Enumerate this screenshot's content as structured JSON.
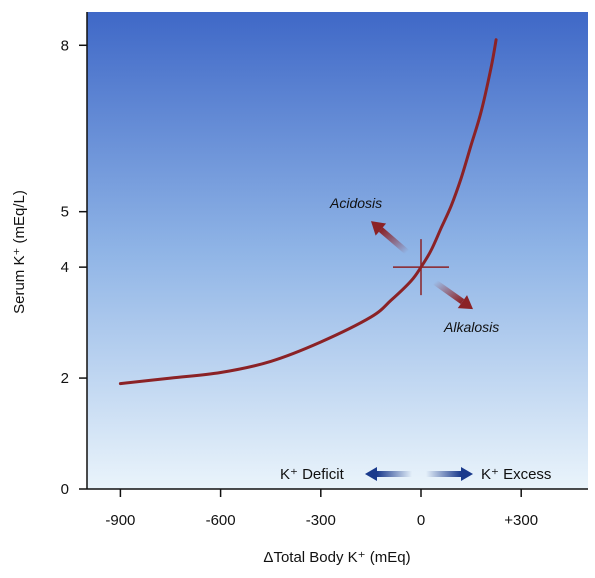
{
  "chart_data": {
    "type": "line",
    "xlabel": "ΔTotal Body K⁺ (mEq)",
    "ylabel": "Serum K⁺ (mEq/L)",
    "xlim": [
      -1000,
      500
    ],
    "ylim": [
      0,
      8.6
    ],
    "x_ticks": [
      {
        "value": -900,
        "label": "-900"
      },
      {
        "value": -600,
        "label": "-600"
      },
      {
        "value": -300,
        "label": "-300"
      },
      {
        "value": 0,
        "label": "0"
      },
      {
        "value": 300,
        "label": "+300"
      }
    ],
    "y_ticks": [
      {
        "value": 0,
        "label": "0"
      },
      {
        "value": 2,
        "label": "2"
      },
      {
        "value": 4,
        "label": "4"
      },
      {
        "value": 5,
        "label": "5"
      },
      {
        "value": 8,
        "label": "8"
      }
    ],
    "series": [
      {
        "x": [
          -900,
          -750,
          -600,
          -450,
          -300,
          -150,
          -90,
          -30,
          0,
          30,
          60,
          90,
          120,
          150,
          180,
          210,
          225
        ],
        "y": [
          1.9,
          2.0,
          2.1,
          2.3,
          2.65,
          3.1,
          3.4,
          3.75,
          4.0,
          4.3,
          4.7,
          5.1,
          5.6,
          6.2,
          6.8,
          7.6,
          8.1
        ]
      }
    ],
    "reference_point": {
      "x": 0,
      "y": 4
    },
    "annotations": {
      "acidosis": "Acidosis",
      "alkalosis": "Alkalosis",
      "deficit": "K⁺ Deficit",
      "excess": "K⁺ Excess"
    },
    "colors": {
      "curve": "#8b2226",
      "arrow_shift": "#8b2226",
      "arrow_legend": "#1a3a8c",
      "background_top": "#3f68c7",
      "background_bottom": "#eaf4fb"
    }
  }
}
